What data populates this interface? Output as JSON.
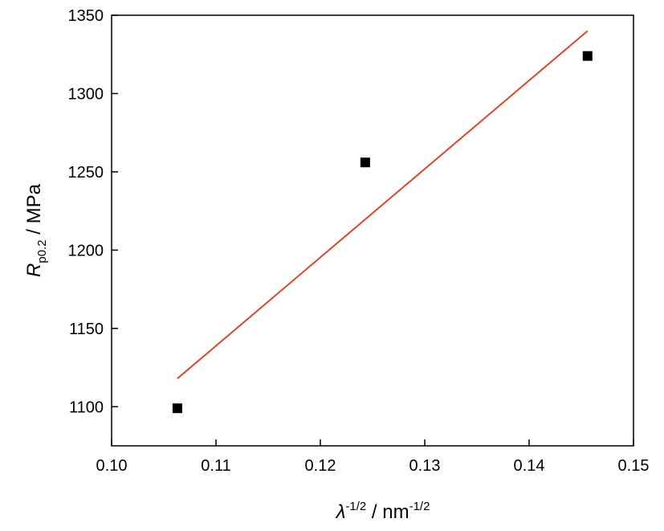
{
  "chart_data": {
    "type": "scatter",
    "xlabel": {
      "symbol": "λ",
      "symbol_sup": "-1/2",
      "unit": " / nm",
      "unit_sup": "-1/2"
    },
    "ylabel": {
      "symbol": "R",
      "symbol_sub": "p0.2",
      "unit": " / MPa"
    },
    "xlim": [
      0.1,
      0.15
    ],
    "ylim": [
      1075,
      1350
    ],
    "xticks": [
      0.1,
      0.11,
      0.12,
      0.13,
      0.14,
      0.15
    ],
    "xtick_labels": [
      "0.10",
      "0.11",
      "0.12",
      "0.13",
      "0.14",
      "0.15"
    ],
    "yticks": [
      1100,
      1150,
      1200,
      1250,
      1300,
      1350
    ],
    "ytick_labels": [
      "1100",
      "1150",
      "1200",
      "1250",
      "1300",
      "1350"
    ],
    "grid": false,
    "series": [
      {
        "kind": "scatter",
        "marker": "square",
        "color": "#000000",
        "points": [
          {
            "x": 0.1063,
            "y": 1099
          },
          {
            "x": 0.1243,
            "y": 1256
          },
          {
            "x": 0.1456,
            "y": 1324
          }
        ]
      },
      {
        "kind": "line",
        "color": "#e0452b",
        "points": [
          {
            "x": 0.1063,
            "y": 1118
          },
          {
            "x": 0.1456,
            "y": 1340
          }
        ]
      }
    ]
  }
}
